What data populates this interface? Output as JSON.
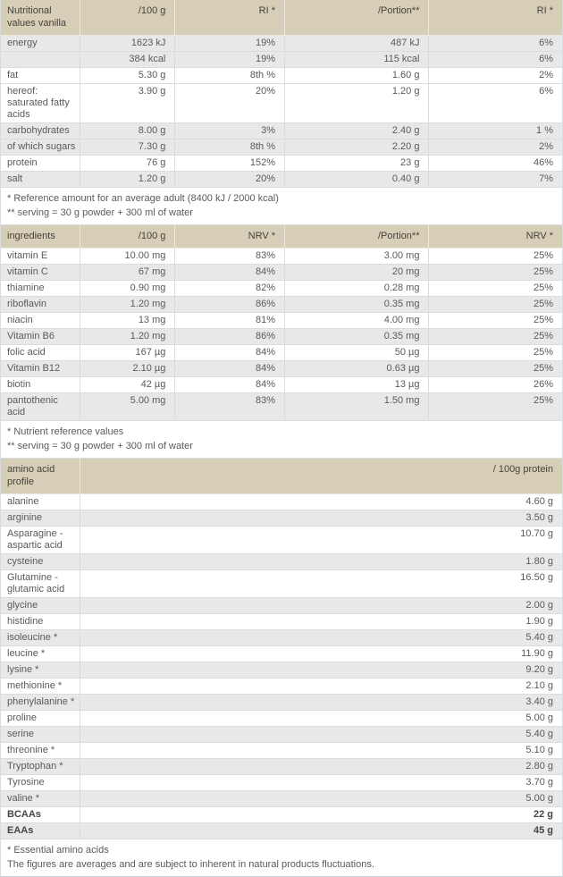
{
  "colors": {
    "header_bg": "#d7ceb7",
    "row_shade_bg": "#e8e8e8",
    "row_bg": "#ffffff",
    "border": "#d9dddf",
    "text": "#5a5a5a"
  },
  "nutrition_table": {
    "headers": [
      "Nutritional values vanilla",
      "/100 g",
      "RI *",
      "/Portion**",
      "RI *"
    ],
    "rows": [
      {
        "label": "energy",
        "per100": "1623 kJ",
        "ri100": "19%",
        "portion": "487 kJ",
        "riPortion": "6%",
        "shade": true
      },
      {
        "label": "",
        "per100": "384 kcal",
        "ri100": "19%",
        "portion": "115 kcal",
        "riPortion": "6%",
        "shade": true
      },
      {
        "label": "fat",
        "per100": "5.30 g",
        "ri100": "8th %",
        "portion": "1.60 g",
        "riPortion": "2%",
        "shade": false
      },
      {
        "label": "hereof: saturated fatty acids",
        "per100": "3.90 g",
        "ri100": "20%",
        "portion": "1.20 g",
        "riPortion": "6%",
        "shade": false
      },
      {
        "label": "carbohydrates",
        "per100": "8.00 g",
        "ri100": "3%",
        "portion": "2.40 g",
        "riPortion": "1 %",
        "shade": true
      },
      {
        "label": "of which sugars",
        "per100": "7.30 g",
        "ri100": "8th %",
        "portion": "2.20 g",
        "riPortion": "2%",
        "shade": true
      },
      {
        "label": "protein",
        "per100": "76 g",
        "ri100": "152%",
        "portion": "23 g",
        "riPortion": "46%",
        "shade": false
      },
      {
        "label": "salt",
        "per100": "1.20 g",
        "ri100": "20%",
        "portion": "0.40 g",
        "riPortion": "7%",
        "shade": true
      }
    ],
    "footnotes": [
      "* Reference amount for an average adult (8400 kJ / 2000 kcal)",
      "** serving = 30 g powder + 300 ml of water"
    ]
  },
  "ingredients_table": {
    "headers": [
      "ingredients",
      "/100 g",
      "NRV *",
      "/Portion**",
      "NRV *"
    ],
    "rows": [
      {
        "label": "vitamin E",
        "per100": "10.00 mg",
        "ri100": "83%",
        "portion": "3.00 mg",
        "riPortion": "25%",
        "shade": false
      },
      {
        "label": "vitamin C",
        "per100": "67 mg",
        "ri100": "84%",
        "portion": "20 mg",
        "riPortion": "25%",
        "shade": true
      },
      {
        "label": "thiamine",
        "per100": "0.90 mg",
        "ri100": "82%",
        "portion": "0.28 mg",
        "riPortion": "25%",
        "shade": false
      },
      {
        "label": "riboflavin",
        "per100": "1.20 mg",
        "ri100": "86%",
        "portion": "0.35 mg",
        "riPortion": "25%",
        "shade": true
      },
      {
        "label": "niacin",
        "per100": "13 mg",
        "ri100": "81%",
        "portion": "4.00 mg",
        "riPortion": "25%",
        "shade": false
      },
      {
        "label": "Vitamin B6",
        "per100": "1.20 mg",
        "ri100": "86%",
        "portion": "0.35 mg",
        "riPortion": "25%",
        "shade": true
      },
      {
        "label": "folic acid",
        "per100": "167 µg",
        "ri100": "84%",
        "portion": "50 µg",
        "riPortion": "25%",
        "shade": false
      },
      {
        "label": "Vitamin B12",
        "per100": "2.10 µg",
        "ri100": "84%",
        "portion": "0.63 µg",
        "riPortion": "25%",
        "shade": true
      },
      {
        "label": "biotin",
        "per100": "42 µg",
        "ri100": "84%",
        "portion": "13 µg",
        "riPortion": "26%",
        "shade": false
      },
      {
        "label": "pantothenic acid",
        "per100": "5.00 mg",
        "ri100": "83%",
        "portion": "1.50 mg",
        "riPortion": "25%",
        "shade": true
      }
    ],
    "footnotes": [
      "* Nutrient reference values",
      "** serving = 30 g powder + 300 ml of water"
    ]
  },
  "amino_table": {
    "headers": [
      "amino acid profile",
      "/ 100g protein"
    ],
    "rows": [
      {
        "label": "alanine",
        "value": "4.60 g",
        "shade": false,
        "bold": false
      },
      {
        "label": "arginine",
        "value": "3.50 g",
        "shade": true,
        "bold": false
      },
      {
        "label": "Asparagine - aspartic acid",
        "value": "10.70 g",
        "shade": false,
        "bold": false
      },
      {
        "label": "cysteine",
        "value": "1.80 g",
        "shade": true,
        "bold": false
      },
      {
        "label": "Glutamine - glutamic acid",
        "value": "16.50 g",
        "shade": false,
        "bold": false
      },
      {
        "label": "glycine",
        "value": "2.00 g",
        "shade": true,
        "bold": false
      },
      {
        "label": "histidine",
        "value": "1.90 g",
        "shade": false,
        "bold": false
      },
      {
        "label": "isoleucine *",
        "value": "5.40 g",
        "shade": true,
        "bold": false
      },
      {
        "label": "leucine *",
        "value": "11.90 g",
        "shade": false,
        "bold": false
      },
      {
        "label": "lysine *",
        "value": "9.20 g",
        "shade": true,
        "bold": false
      },
      {
        "label": "methionine *",
        "value": "2.10 g",
        "shade": false,
        "bold": false
      },
      {
        "label": "phenylalanine *",
        "value": "3.40 g",
        "shade": true,
        "bold": false
      },
      {
        "label": "proline",
        "value": "5.00 g",
        "shade": false,
        "bold": false
      },
      {
        "label": "serine",
        "value": "5.40 g",
        "shade": true,
        "bold": false
      },
      {
        "label": "threonine *",
        "value": "5.10 g",
        "shade": false,
        "bold": false
      },
      {
        "label": "Tryptophan *",
        "value": "2.80 g",
        "shade": true,
        "bold": false
      },
      {
        "label": "Tyrosine",
        "value": "3.70 g",
        "shade": false,
        "bold": false
      },
      {
        "label": "valine *",
        "value": "5.00 g",
        "shade": true,
        "bold": false
      },
      {
        "label": "BCAAs",
        "value": "22 g",
        "shade": false,
        "bold": true
      },
      {
        "label": "EAAs",
        "value": "45 g",
        "shade": true,
        "bold": true
      }
    ],
    "footnotes": [
      "* Essential amino acids",
      "The figures are averages and are subject to inherent in natural products fluctuations."
    ]
  }
}
